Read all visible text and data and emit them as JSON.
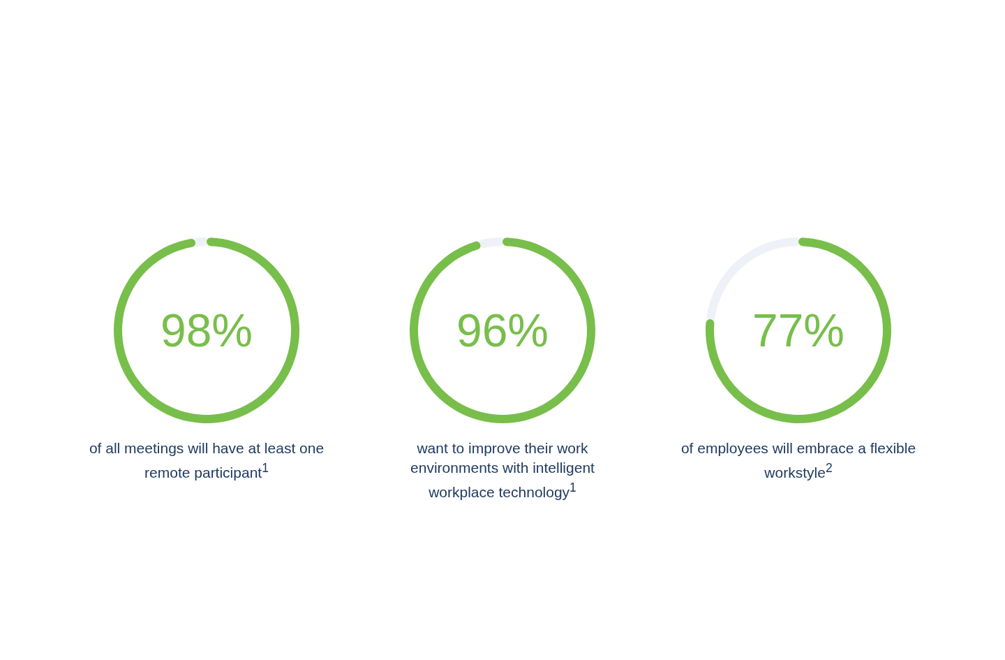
{
  "chart_data": [
    {
      "type": "donut",
      "categories": [
        null,
        null
      ],
      "values": [
        98,
        2
      ],
      "colors": [
        "#78be4b",
        "#eef1f7"
      ],
      "annotations": [
        "98%"
      ],
      "xlabel": "of all meetings will have at least one remote participant$^{1}$"
    },
    {
      "type": "donut",
      "categories": [
        null,
        null
      ],
      "values": [
        96,
        4
      ],
      "colors": [
        "#78be4b",
        "#eef1f7"
      ],
      "annotations": [
        "96%"
      ],
      "xlabel": "want to improve their work environments with intelligent workplace technology$^{1}$"
    },
    {
      "type": "donut",
      "categories": [
        null,
        null
      ],
      "values": [
        77,
        23
      ],
      "colors": [
        "#78be4b",
        "#eef1f7"
      ],
      "annotations": [
        "77%"
      ],
      "xlabel": "of employees will embrace a flexible workstyle$^{2}$"
    }
  ]
}
